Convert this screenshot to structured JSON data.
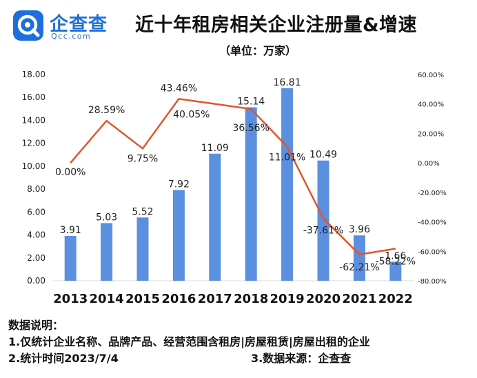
{
  "logo": {
    "name": "企查查",
    "domain": "Qcc.com"
  },
  "title": "近十年租房相关企业注册量&增速",
  "subtitle": "（单位：万家）",
  "chart_data": {
    "type": "bar",
    "categories": [
      "2013",
      "2014",
      "2015",
      "2016",
      "2017",
      "2018",
      "2019",
      "2020",
      "2021",
      "2022"
    ],
    "series": [
      {
        "type": "bar",
        "axis": "left",
        "color": "#5b8fe0",
        "values": [
          3.91,
          5.03,
          5.52,
          7.92,
          11.09,
          15.14,
          16.81,
          10.49,
          3.96,
          1.66
        ],
        "labels": [
          "3.91",
          "5.03",
          "5.52",
          "7.92",
          "11.09",
          "15.14",
          "16.81",
          "10.49",
          "3.96",
          "1.66"
        ]
      },
      {
        "type": "line",
        "axis": "right",
        "color": "#e0562a",
        "values": [
          0.0,
          28.59,
          9.75,
          43.46,
          40.05,
          36.56,
          11.01,
          -37.61,
          -62.21,
          -58.22
        ],
        "labels": [
          "0.00%",
          "28.59%",
          "9.75%",
          "43.46%",
          "40.05%",
          "36.56%",
          "11.01%",
          "-37.61%",
          "-62.21%",
          "-58.22%"
        ]
      }
    ],
    "left_axis": {
      "ylim": [
        0,
        18
      ],
      "ticks": [
        "0.00",
        "2.00",
        "4.00",
        "6.00",
        "8.00",
        "10.00",
        "12.00",
        "14.00",
        "16.00",
        "18.00"
      ]
    },
    "right_axis": {
      "ylim": [
        -80,
        60
      ],
      "ticks": [
        "-80.00%",
        "-60.00%",
        "-40.00%",
        "-20.00%",
        "0.00%",
        "20.00%",
        "40.00%",
        "60.00%"
      ]
    },
    "grid": false,
    "legend": "none"
  },
  "notes": {
    "heading": "数据说明：",
    "line1": "1.仅统计企业名称、品牌产品、经营范围含租房|房屋租赁|房屋出租的企业",
    "line2a": "2.统计时间2023/7/4",
    "line2b": "3.数据来源：企查查"
  }
}
